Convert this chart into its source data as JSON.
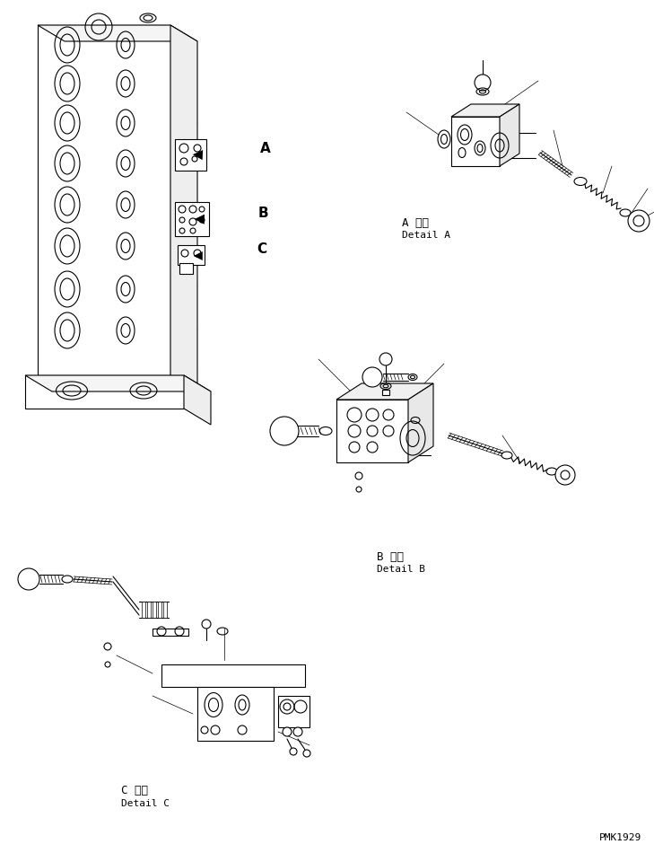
{
  "background_color": "#ffffff",
  "watermark": "PMK1929",
  "labels": {
    "detail_a_japanese": "A 詳細",
    "detail_a_english": "Detail A",
    "detail_b_japanese": "B 詳細",
    "detail_b_english": "Detail B",
    "detail_c_japanese": "C 詳細",
    "detail_c_english": "Detail C"
  },
  "line_color": "#000000",
  "lw": 0.8,
  "tlw": 0.5,
  "fs_label": 7,
  "fs_wm": 7,
  "fs_abc": 11
}
